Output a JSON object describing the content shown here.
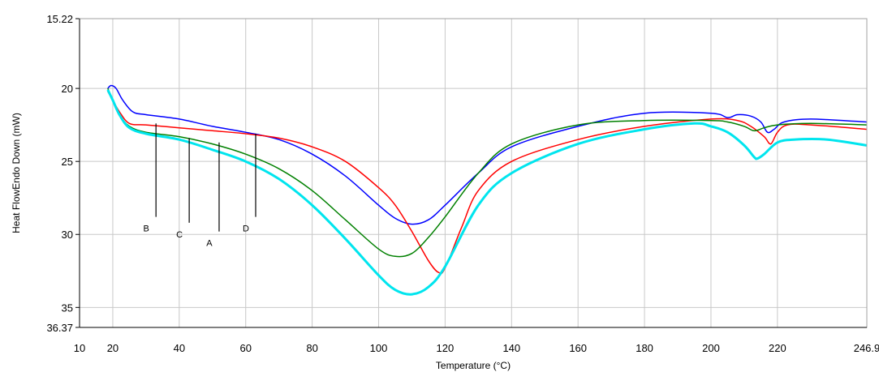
{
  "chart_data": {
    "type": "line",
    "title": "",
    "xlabel": "Temperature (°C)",
    "ylabel": "Heat FlowEndo Down (mW)",
    "xlim": [
      10,
      246.9
    ],
    "ylim": [
      15.22,
      36.37
    ],
    "y_inverted": true,
    "grid": true,
    "x_ticks": [
      "10",
      "20",
      "40",
      "60",
      "80",
      "100",
      "120",
      "140",
      "160",
      "180",
      "200",
      "220",
      "246.9"
    ],
    "y_ticks": [
      "15.22",
      "20",
      "25",
      "30",
      "35",
      "36.37"
    ],
    "series": [
      {
        "color": "#0000ff",
        "x": [
          18.5,
          19.5,
          21,
          23,
          26,
          30,
          40,
          50,
          60,
          70,
          80,
          90,
          100,
          105,
          110,
          115,
          120,
          130,
          140,
          160,
          180,
          200,
          205,
          208,
          212,
          215,
          217,
          219,
          222,
          230,
          246.9
        ],
        "y": [
          20.0,
          19.8,
          20.0,
          20.8,
          21.6,
          21.8,
          22.1,
          22.6,
          23.0,
          23.5,
          24.5,
          26.0,
          28.0,
          28.9,
          29.3,
          29.0,
          28.0,
          25.8,
          24.0,
          22.6,
          21.7,
          21.7,
          22.0,
          21.8,
          21.9,
          22.3,
          23.0,
          22.8,
          22.3,
          22.1,
          22.3
        ]
      },
      {
        "color": "#ff0000",
        "x": [
          18.5,
          20,
          22,
          25,
          30,
          40,
          50,
          60,
          70,
          80,
          90,
          100,
          105,
          110,
          115,
          118,
          120,
          125,
          130,
          140,
          160,
          180,
          200,
          208,
          212,
          216,
          218,
          220,
          223,
          230,
          246.9
        ],
        "y": [
          20.2,
          20.8,
          21.6,
          22.4,
          22.5,
          22.7,
          22.9,
          23.1,
          23.4,
          24.0,
          25.0,
          26.8,
          28.0,
          29.8,
          31.8,
          32.6,
          32.3,
          29.5,
          27.0,
          25.0,
          23.5,
          22.6,
          22.1,
          22.2,
          22.6,
          23.3,
          23.8,
          23.0,
          22.5,
          22.5,
          22.8
        ]
      },
      {
        "color": "#008000",
        "x": [
          18.5,
          20,
          22,
          25,
          30,
          40,
          50,
          60,
          70,
          80,
          90,
          100,
          105,
          110,
          115,
          120,
          130,
          140,
          160,
          180,
          200,
          205,
          210,
          213,
          216,
          220,
          230,
          246.9
        ],
        "y": [
          20.0,
          20.8,
          21.8,
          22.6,
          23.0,
          23.3,
          23.8,
          24.5,
          25.5,
          27.0,
          29.0,
          31.0,
          31.5,
          31.3,
          30.2,
          28.8,
          25.8,
          23.8,
          22.5,
          22.2,
          22.2,
          22.3,
          22.6,
          22.9,
          22.7,
          22.5,
          22.4,
          22.5
        ]
      },
      {
        "color": "#00e5ee",
        "x": [
          18.5,
          20,
          22,
          25,
          30,
          40,
          50,
          60,
          70,
          80,
          90,
          100,
          105,
          110,
          115,
          120,
          130,
          140,
          160,
          180,
          195,
          200,
          205,
          210,
          213,
          214,
          216,
          220,
          225,
          235,
          246.9
        ],
        "y": [
          20.1,
          20.8,
          21.8,
          22.7,
          23.1,
          23.5,
          24.2,
          25.0,
          26.2,
          28.0,
          30.3,
          32.8,
          33.8,
          34.1,
          33.6,
          32.2,
          28.0,
          25.8,
          23.8,
          22.8,
          22.4,
          22.6,
          23.0,
          23.9,
          24.7,
          24.8,
          24.5,
          23.7,
          23.5,
          23.5,
          23.9
        ]
      }
    ],
    "annotations": [
      {
        "text": "B",
        "x": 33,
        "line_y": [
          22.4,
          28.8
        ]
      },
      {
        "text": "C",
        "x": 43,
        "line_y": [
          23.4,
          29.2
        ]
      },
      {
        "text": "A",
        "x": 52,
        "line_y": [
          23.7,
          29.8
        ]
      },
      {
        "text": "D",
        "x": 63,
        "line_y": [
          23.1,
          28.8
        ]
      }
    ]
  }
}
